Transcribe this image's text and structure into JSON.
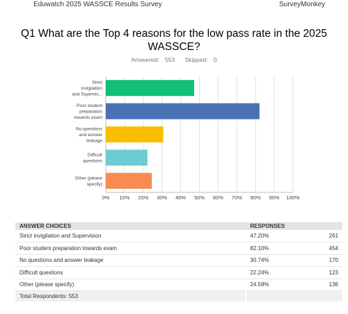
{
  "header": {
    "survey_name": "Eduwatch 2025 WASSCE Results Survey",
    "brand": "SurveyMonkey"
  },
  "question": {
    "title": "Q1 What are the Top 4 reasons for the low pass rate in the 2025 WASSCE?",
    "answered_label": "Answered:",
    "answered": "553",
    "skipped_label": "Skipped:",
    "skipped": "0"
  },
  "chart_data": {
    "type": "bar",
    "orientation": "horizontal",
    "categories": [
      [
        "Strict",
        "invigilation",
        "and Supervis..."
      ],
      [
        "Poor student",
        "preparation",
        "towards exam"
      ],
      [
        "No questions",
        "and answer",
        "leakage"
      ],
      [
        "Difficult",
        "questions"
      ],
      [
        "Other (please",
        "specify)"
      ]
    ],
    "values": [
      47.2,
      82.1,
      30.74,
      22.24,
      24.59
    ],
    "colors": [
      "#12bf76",
      "#4a72b2",
      "#f9be00",
      "#6ecbd1",
      "#f98a50"
    ],
    "xlim": [
      0,
      100
    ],
    "xticks": [
      "0%",
      "10%",
      "20%",
      "30%",
      "40%",
      "50%",
      "60%",
      "70%",
      "80%",
      "90%",
      "100%"
    ],
    "grid": true
  },
  "table": {
    "headers": {
      "choices": "ANSWER CHOICES",
      "responses": "RESPONSES"
    },
    "rows": [
      {
        "choice": "Strict invigilation and Supervision",
        "percent": "47.20%",
        "count": "261"
      },
      {
        "choice": "Poor student preparation towards exam",
        "percent": "82.10%",
        "count": "454"
      },
      {
        "choice": "No questions and answer leakage",
        "percent": "30.74%",
        "count": "170"
      },
      {
        "choice": "Difficult questions",
        "percent": "22.24%",
        "count": "123"
      },
      {
        "choice": "Other (please specify)",
        "percent": "24.59%",
        "count": "136"
      }
    ],
    "total_label": "Total Respondents: 553"
  }
}
